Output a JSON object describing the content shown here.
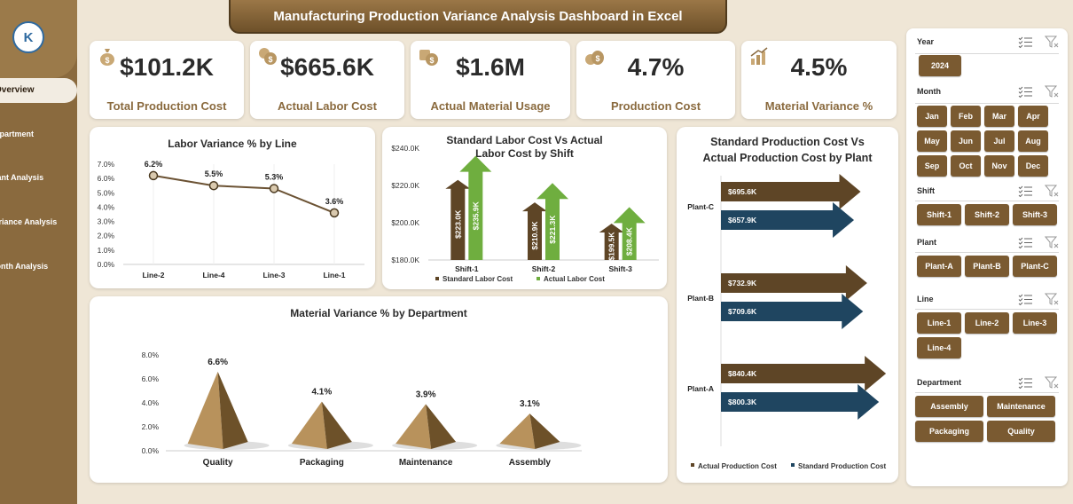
{
  "app": {
    "title": "Manufacturing Production Variance Analysis Dashboard in Excel",
    "logo_text": "K"
  },
  "nav": {
    "items": [
      "Overview",
      "Department",
      "Plant Analysis",
      "Variance Analysis",
      "Month Analysis"
    ],
    "active": "Overview"
  },
  "kpis": [
    {
      "value": "$101.2K",
      "label": "Total Production Cost",
      "icon": "money-bag-icon"
    },
    {
      "value": "$665.6K",
      "label": "Actual Labor Cost",
      "icon": "coins-icon"
    },
    {
      "value": "$1.6M",
      "label": "Actual Material Usage",
      "icon": "material-icon"
    },
    {
      "value": "4.7%",
      "label": "Production Cost",
      "icon": "money-bags-icon"
    },
    {
      "value": "4.5%",
      "label": "Material Variance %",
      "icon": "growth-chart-icon"
    }
  ],
  "chart_data": [
    {
      "type": "line",
      "title": "Labor Variance % by Line",
      "categories": [
        "Line-2",
        "Line-4",
        "Line-3",
        "Line-1"
      ],
      "values": [
        6.2,
        5.5,
        5.3,
        3.6
      ],
      "data_labels": [
        "6.2%",
        "5.5%",
        "5.3%",
        "3.6%"
      ],
      "yticks": [
        "0.0%",
        "1.0%",
        "2.0%",
        "3.0%",
        "4.0%",
        "5.0%",
        "6.0%",
        "7.0%"
      ],
      "ylim": [
        0,
        7
      ],
      "color": "#6b5233"
    },
    {
      "type": "bar",
      "title": "Standard Labor Cost Vs Actual Labor Cost by Shift",
      "categories": [
        "Shift-1",
        "Shift-2",
        "Shift-3"
      ],
      "series": [
        {
          "name": "Standard Labor Cost",
          "values": [
            223.0,
            210.9,
            199.5
          ],
          "labels": [
            "$223.0K",
            "$210.9K",
            "$199.5K"
          ],
          "color": "#5e4526"
        },
        {
          "name": "Actual Labor Cost",
          "values": [
            235.9,
            221.3,
            208.4
          ],
          "labels": [
            "$235.9K",
            "$221.3K",
            "$208.4K"
          ],
          "color": "#6fae3f"
        }
      ],
      "yticks": [
        "$180.0K",
        "$200.0K",
        "$220.0K",
        "$240.0K"
      ],
      "ylim": [
        180,
        240
      ]
    },
    {
      "type": "bar",
      "title": "Standard Production Cost Vs Actual Production Cost by Plant",
      "categories": [
        "Plant-C",
        "Plant-B",
        "Plant-A"
      ],
      "series": [
        {
          "name": "Actual Production Cost",
          "values": [
            695.6,
            732.9,
            840.4
          ],
          "labels": [
            "$695.6K",
            "$732.9K",
            "$840.4K"
          ],
          "color": "#5e4526"
        },
        {
          "name": "Standard Production Cost",
          "values": [
            657.9,
            709.6,
            800.3
          ],
          "labels": [
            "$657.9K",
            "$709.6K",
            "$800.3K"
          ],
          "color": "#1f4560"
        }
      ]
    },
    {
      "type": "bar",
      "title": "Material Variance % by Department",
      "categories": [
        "Quality",
        "Packaging",
        "Maintenance",
        "Assembly"
      ],
      "values": [
        6.6,
        4.1,
        3.9,
        3.1
      ],
      "data_labels": [
        "6.6%",
        "4.1%",
        "3.9%",
        "3.1%"
      ],
      "yticks": [
        "0.0%",
        "2.0%",
        "4.0%",
        "6.0%",
        "8.0%"
      ],
      "ylim": [
        0,
        8
      ],
      "color": "#8a6a3e"
    }
  ],
  "slicers": {
    "year": {
      "label": "Year",
      "options": [
        "2024"
      ]
    },
    "month": {
      "label": "Month",
      "options": [
        "Jan",
        "Feb",
        "Mar",
        "Apr",
        "May",
        "Jun",
        "Jul",
        "Aug",
        "Sep",
        "Oct",
        "Nov",
        "Dec"
      ]
    },
    "shift": {
      "label": "Shift",
      "options": [
        "Shift-1",
        "Shift-2",
        "Shift-3"
      ]
    },
    "plant": {
      "label": "Plant",
      "options": [
        "Plant-A",
        "Plant-B",
        "Plant-C"
      ]
    },
    "line": {
      "label": "Line",
      "options": [
        "Line-1",
        "Line-2",
        "Line-3",
        "Line-4"
      ]
    },
    "department": {
      "label": "Department",
      "options": [
        "Assembly",
        "Maintenance",
        "Packaging",
        "Quality"
      ]
    }
  }
}
